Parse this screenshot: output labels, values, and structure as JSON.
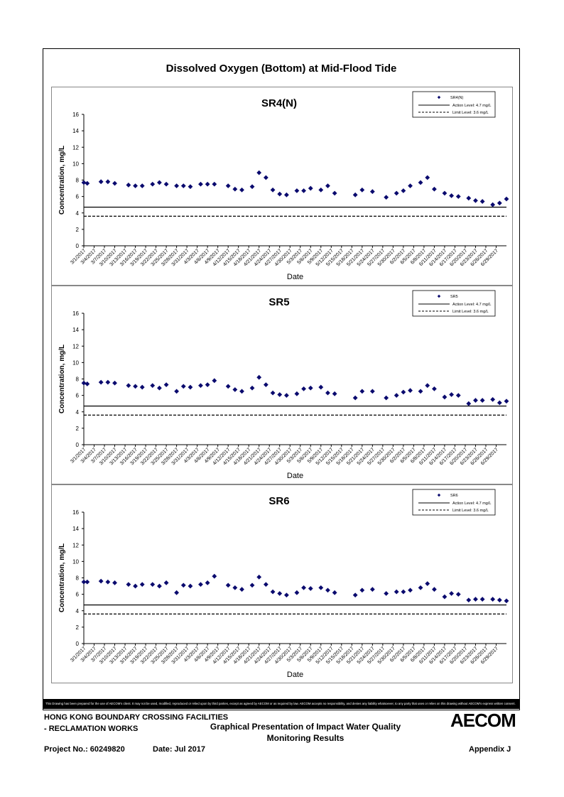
{
  "page": {
    "title": "Dissolved Oxygen (Bottom) at Mid-Flood Tide",
    "disclaimer": "This Drawing has been prepared for the use of AECOM's client. It may not be used, modified, reproduced or relied upon by third parties, except as agreed by AECOM or as required by law. AECOM accepts no responsibility, and denies any liability whatsoever, to any party that uses or relies on this drawing without AECOM's express written consent.",
    "footer": {
      "line1": "HONG KONG BOUNDARY CROSSING FACILITIES",
      "line2": "- RECLAMATION WORKS",
      "center_line1": "Graphical Presentation of Impact Water Quality",
      "center_line2": "Monitoring Results",
      "project": "Project No.: 60249820",
      "date": "Date: Jul 2017",
      "appendix": "Appendix J",
      "logo": "AECOM"
    }
  },
  "chart_data": [
    {
      "type": "scatter",
      "title": "SR4(N)",
      "xlabel": "Date",
      "ylabel": "Concentration, mg/L",
      "ylim": [
        0,
        16
      ],
      "yticks": [
        "0",
        "2",
        "4",
        "6",
        "8",
        "10",
        "12",
        "14",
        "16"
      ],
      "xticks": [
        "3/1/2017",
        "3/4/2017",
        "3/7/2017",
        "3/10/2017",
        "3/13/2017",
        "3/16/2017",
        "3/19/2017",
        "3/22/2017",
        "3/25/2017",
        "3/28/2017",
        "3/31/2017",
        "4/3/2017",
        "4/6/2017",
        "4/9/2017",
        "4/12/2017",
        "4/15/2017",
        "4/18/2017",
        "4/21/2017",
        "4/24/2017",
        "4/27/2017",
        "4/30/2017",
        "5/3/2017",
        "5/6/2017",
        "5/9/2017",
        "5/12/2017",
        "5/15/2017",
        "5/18/2017",
        "5/21/2017",
        "5/24/2017",
        "5/27/2017",
        "5/30/2017",
        "6/2/2017",
        "6/5/2017",
        "6/8/2017",
        "6/11/2017",
        "6/14/2017",
        "6/17/2017",
        "6/20/2017",
        "6/23/2017",
        "6/26/2017",
        "6/29/2017"
      ],
      "series": [
        {
          "name": "SR4(N)",
          "marker": "diamond",
          "color": "#0a0a6e",
          "x": [
            "3/1/2017",
            "3/2/2017",
            "3/6/2017",
            "3/8/2017",
            "3/10/2017",
            "3/14/2017",
            "3/16/2017",
            "3/18/2017",
            "3/21/2017",
            "3/23/2017",
            "3/25/2017",
            "3/28/2017",
            "3/30/2017",
            "4/1/2017",
            "4/4/2017",
            "4/6/2017",
            "4/8/2017",
            "4/12/2017",
            "4/14/2017",
            "4/16/2017",
            "4/19/2017",
            "4/21/2017",
            "4/23/2017",
            "4/25/2017",
            "4/27/2017",
            "4/29/2017",
            "5/2/2017",
            "5/4/2017",
            "5/6/2017",
            "5/9/2017",
            "5/11/2017",
            "5/13/2017",
            "5/19/2017",
            "5/21/2017",
            "5/24/2017",
            "5/28/2017",
            "5/31/2017",
            "6/2/2017",
            "6/4/2017",
            "6/7/2017",
            "6/9/2017",
            "6/11/2017",
            "6/14/2017",
            "6/16/2017",
            "6/18/2017",
            "6/21/2017",
            "6/23/2017",
            "6/25/2017",
            "6/28/2017",
            "6/30/2017",
            "7/2/2017"
          ],
          "y": [
            7.7,
            7.6,
            7.8,
            7.8,
            7.6,
            7.4,
            7.3,
            7.3,
            7.5,
            7.7,
            7.5,
            7.3,
            7.3,
            7.2,
            7.5,
            7.5,
            7.5,
            7.3,
            6.9,
            6.8,
            7.2,
            8.9,
            8.3,
            6.8,
            6.3,
            6.2,
            6.7,
            6.7,
            7.0,
            6.8,
            7.3,
            6.4,
            6.2,
            6.8,
            6.6,
            5.9,
            6.4,
            6.7,
            7.3,
            7.7,
            8.3,
            6.9,
            6.4,
            6.1,
            6.0,
            5.8,
            5.5,
            5.4,
            5.0,
            5.2,
            5.7
          ]
        },
        {
          "name": "Action Level: 4.7 mg/L",
          "style": "solid",
          "y": 4.7
        },
        {
          "name": "Limit Level: 3.6 mg/L",
          "style": "dashed",
          "y": 3.6
        }
      ]
    },
    {
      "type": "scatter",
      "title": "SR5",
      "xlabel": "Date",
      "ylabel": "Concentration, mg/L",
      "ylim": [
        0,
        16
      ],
      "yticks": [
        "0",
        "2",
        "4",
        "6",
        "8",
        "10",
        "12",
        "14",
        "16"
      ],
      "xticks": [
        "3/1/2017",
        "3/4/2017",
        "3/7/2017",
        "3/10/2017",
        "3/13/2017",
        "3/16/2017",
        "3/19/2017",
        "3/22/2017",
        "3/25/2017",
        "3/28/2017",
        "3/31/2017",
        "4/3/2017",
        "4/6/2017",
        "4/9/2017",
        "4/12/2017",
        "4/15/2017",
        "4/18/2017",
        "4/21/2017",
        "4/24/2017",
        "4/27/2017",
        "4/30/2017",
        "5/3/2017",
        "5/6/2017",
        "5/9/2017",
        "5/12/2017",
        "5/15/2017",
        "5/18/2017",
        "5/21/2017",
        "5/24/2017",
        "5/27/2017",
        "5/30/2017",
        "6/2/2017",
        "6/5/2017",
        "6/8/2017",
        "6/11/2017",
        "6/14/2017",
        "6/17/2017",
        "6/20/2017",
        "6/23/2017",
        "6/26/2017",
        "6/29/2017"
      ],
      "series": [
        {
          "name": "SR5",
          "marker": "diamond",
          "color": "#0a0a6e",
          "x": [
            "3/1/2017",
            "3/2/2017",
            "3/6/2017",
            "3/8/2017",
            "3/10/2017",
            "3/14/2017",
            "3/16/2017",
            "3/18/2017",
            "3/21/2017",
            "3/23/2017",
            "3/25/2017",
            "3/28/2017",
            "3/30/2017",
            "4/1/2017",
            "4/4/2017",
            "4/6/2017",
            "4/8/2017",
            "4/12/2017",
            "4/14/2017",
            "4/16/2017",
            "4/19/2017",
            "4/21/2017",
            "4/23/2017",
            "4/25/2017",
            "4/27/2017",
            "4/29/2017",
            "5/2/2017",
            "5/4/2017",
            "5/6/2017",
            "5/9/2017",
            "5/11/2017",
            "5/13/2017",
            "5/19/2017",
            "5/21/2017",
            "5/24/2017",
            "5/28/2017",
            "5/31/2017",
            "6/2/2017",
            "6/4/2017",
            "6/7/2017",
            "6/9/2017",
            "6/11/2017",
            "6/14/2017",
            "6/16/2017",
            "6/18/2017",
            "6/21/2017",
            "6/23/2017",
            "6/25/2017",
            "6/28/2017",
            "6/30/2017",
            "7/2/2017"
          ],
          "y": [
            7.5,
            7.4,
            7.6,
            7.6,
            7.5,
            7.2,
            7.1,
            7.0,
            7.2,
            6.9,
            7.3,
            6.5,
            7.1,
            7.0,
            7.2,
            7.3,
            7.8,
            7.1,
            6.7,
            6.5,
            6.9,
            8.2,
            7.3,
            6.3,
            6.1,
            6.0,
            6.2,
            6.8,
            6.9,
            7.0,
            6.3,
            6.2,
            5.7,
            6.5,
            6.5,
            5.7,
            6.0,
            6.4,
            6.6,
            6.5,
            7.2,
            6.8,
            5.8,
            6.1,
            6.0,
            5.0,
            5.4,
            5.4,
            5.5,
            5.1,
            5.3
          ]
        },
        {
          "name": "Action Level: 4.7 mg/L",
          "style": "solid",
          "y": 4.7
        },
        {
          "name": "Limit Level: 3.6 mg/L",
          "style": "dashed",
          "y": 3.6
        }
      ]
    },
    {
      "type": "scatter",
      "title": "SR6",
      "xlabel": "Date",
      "ylabel": "Concentration, mg/L",
      "ylim": [
        0,
        16
      ],
      "yticks": [
        "0",
        "2",
        "4",
        "6",
        "8",
        "10",
        "12",
        "14",
        "16"
      ],
      "xticks": [
        "3/1/2017",
        "3/4/2017",
        "3/7/2017",
        "3/10/2017",
        "3/13/2017",
        "3/16/2017",
        "3/19/2017",
        "3/22/2017",
        "3/25/2017",
        "3/28/2017",
        "3/31/2017",
        "4/3/2017",
        "4/6/2017",
        "4/9/2017",
        "4/12/2017",
        "4/15/2017",
        "4/18/2017",
        "4/21/2017",
        "4/24/2017",
        "4/27/2017",
        "4/30/2017",
        "5/3/2017",
        "5/6/2017",
        "5/9/2017",
        "5/12/2017",
        "5/15/2017",
        "5/18/2017",
        "5/21/2017",
        "5/24/2017",
        "5/27/2017",
        "5/30/2017",
        "6/2/2017",
        "6/5/2017",
        "6/8/2017",
        "6/11/2017",
        "6/14/2017",
        "6/17/2017",
        "6/20/2017",
        "6/23/2017",
        "6/26/2017",
        "6/29/2017"
      ],
      "series": [
        {
          "name": "SR6",
          "marker": "diamond",
          "color": "#0a0a6e",
          "x": [
            "3/1/2017",
            "3/2/2017",
            "3/6/2017",
            "3/8/2017",
            "3/10/2017",
            "3/14/2017",
            "3/16/2017",
            "3/18/2017",
            "3/21/2017",
            "3/23/2017",
            "3/25/2017",
            "3/28/2017",
            "3/30/2017",
            "4/1/2017",
            "4/4/2017",
            "4/6/2017",
            "4/8/2017",
            "4/12/2017",
            "4/14/2017",
            "4/16/2017",
            "4/19/2017",
            "4/21/2017",
            "4/23/2017",
            "4/25/2017",
            "4/27/2017",
            "4/29/2017",
            "5/2/2017",
            "5/4/2017",
            "5/6/2017",
            "5/9/2017",
            "5/11/2017",
            "5/13/2017",
            "5/19/2017",
            "5/21/2017",
            "5/24/2017",
            "5/28/2017",
            "5/31/2017",
            "6/2/2017",
            "6/4/2017",
            "6/7/2017",
            "6/9/2017",
            "6/11/2017",
            "6/14/2017",
            "6/16/2017",
            "6/18/2017",
            "6/21/2017",
            "6/23/2017",
            "6/25/2017",
            "6/28/2017",
            "6/30/2017",
            "7/2/2017"
          ],
          "y": [
            7.5,
            7.5,
            7.6,
            7.5,
            7.4,
            7.2,
            7.0,
            7.2,
            7.2,
            7.0,
            7.4,
            6.2,
            7.1,
            7.0,
            7.2,
            7.4,
            8.2,
            7.1,
            6.8,
            6.6,
            7.1,
            8.1,
            7.2,
            6.3,
            6.1,
            5.9,
            6.2,
            6.8,
            6.7,
            6.8,
            6.5,
            6.2,
            5.9,
            6.5,
            6.6,
            6.1,
            6.3,
            6.3,
            6.5,
            6.8,
            7.3,
            6.6,
            5.7,
            6.1,
            6.0,
            5.3,
            5.4,
            5.4,
            5.4,
            5.3,
            5.2
          ]
        },
        {
          "name": "Action Level: 4.7 mg/L",
          "style": "solid",
          "y": 4.7
        },
        {
          "name": "Limit Level: 3.6 mg/L",
          "style": "dashed",
          "y": 3.6
        }
      ]
    }
  ]
}
